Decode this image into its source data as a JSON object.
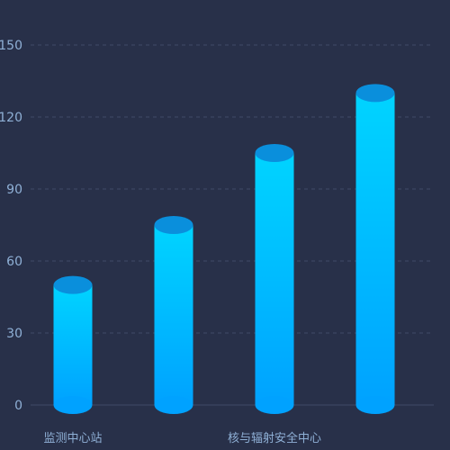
{
  "theme": {
    "background": "#283049",
    "grid_color": "#3f4a66",
    "tick_label_color": "#8fb0d6",
    "bar_top_color": "#00d4ff",
    "bar_bottom_color": "#00a2ff",
    "bar_cap_color": "#0a8fdc"
  },
  "chart_data": {
    "type": "bar",
    "title": "",
    "xlabel": "",
    "ylabel": "",
    "categories": [
      "监测中心站",
      "",
      "核与辐射安全中心",
      ""
    ],
    "values": [
      50,
      75,
      105,
      130
    ],
    "yticks": [
      "0",
      "30",
      "60",
      "90",
      "120",
      "150"
    ],
    "ylim": [
      0,
      150
    ],
    "grid": true,
    "bar_style": "cylinder"
  }
}
